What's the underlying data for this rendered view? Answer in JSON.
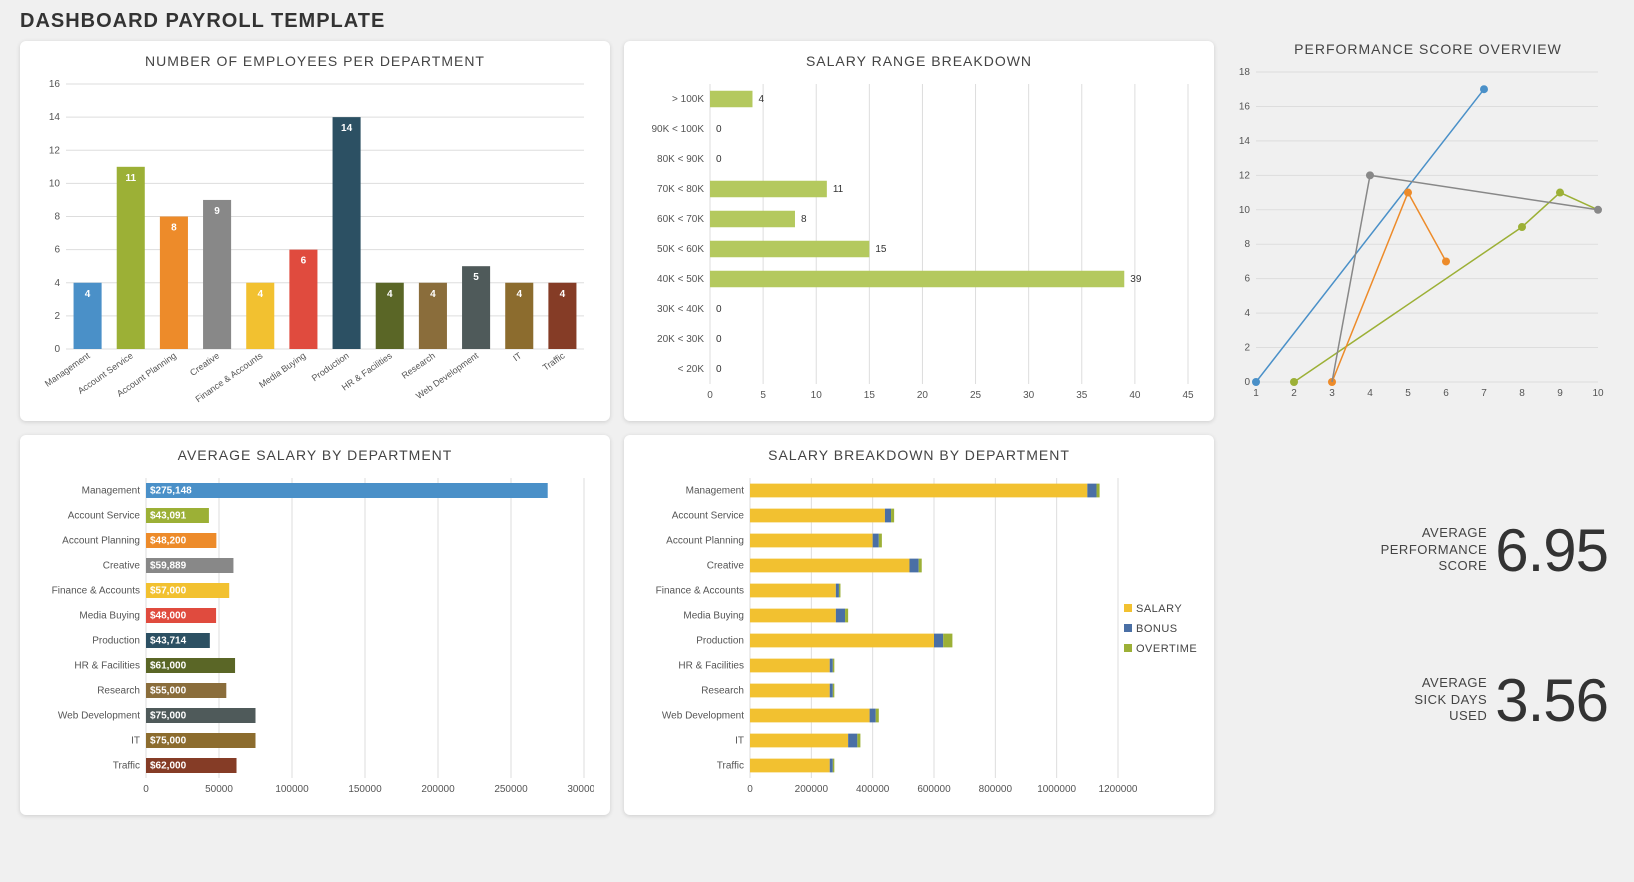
{
  "page_title": "DASHBOARD PAYROLL TEMPLATE",
  "background_color": "#f0f0f0",
  "card_bg": "#ffffff",
  "employees_chart": {
    "title": "NUMBER OF EMPLOYEES PER DEPARTMENT",
    "type": "bar",
    "categories": [
      "Management",
      "Account Service",
      "Account Planning",
      "Creative",
      "Finance & Accounts",
      "Media Buying",
      "Production",
      "HR & Facilities",
      "Research",
      "Web Development",
      "IT",
      "Traffic"
    ],
    "values": [
      4,
      11,
      8,
      9,
      4,
      6,
      14,
      4,
      4,
      5,
      4,
      4
    ],
    "colors": [
      "#4a90c8",
      "#9cb036",
      "#ed8b2a",
      "#888888",
      "#f2c130",
      "#e04b3e",
      "#2c5063",
      "#5a6626",
      "#8a6d3b",
      "#4f5a5a",
      "#8c6c2e",
      "#853c26"
    ],
    "y_max": 16,
    "y_step": 2,
    "grid_color": "#dddddd",
    "label_color": "#555555"
  },
  "salary_range_chart": {
    "title": "SALARY RANGE BREAKDOWN",
    "type": "horizontal_bar",
    "categories": [
      "> 100K",
      "90K < 100K",
      "80K < 90K",
      "70K < 80K",
      "60K < 70K",
      "50K < 60K",
      "40K < 50K",
      "30K < 40K",
      "20K < 30K",
      "< 20K"
    ],
    "values": [
      4,
      0,
      0,
      11,
      8,
      15,
      39,
      0,
      0,
      0
    ],
    "bar_color": "#b4c95e",
    "x_max": 45,
    "x_step": 5,
    "grid_color": "#dddddd"
  },
  "performance_chart": {
    "title": "PERFORMANCE SCORE OVERVIEW",
    "type": "line_multi",
    "x_labels": [
      "1",
      "2",
      "3",
      "4",
      "5",
      "6",
      "7",
      "8",
      "9",
      "10"
    ],
    "y_max": 18,
    "y_step": 2,
    "series": [
      {
        "color": "#4a90c8",
        "points": [
          [
            1,
            0
          ],
          [
            7,
            17
          ]
        ],
        "markers": [
          [
            1,
            0
          ],
          [
            7,
            17
          ]
        ]
      },
      {
        "color": "#9cb036",
        "points": [
          [
            2,
            0
          ],
          [
            8,
            9
          ],
          [
            9,
            11
          ],
          [
            10,
            10
          ]
        ],
        "markers": [
          [
            2,
            0
          ],
          [
            8,
            9
          ],
          [
            9,
            11
          ]
        ]
      },
      {
        "color": "#ed8b2a",
        "points": [
          [
            3,
            0
          ],
          [
            5,
            11
          ],
          [
            6,
            7
          ]
        ],
        "markers": [
          [
            3,
            0
          ],
          [
            5,
            11
          ],
          [
            6,
            7
          ]
        ]
      },
      {
        "color": "#888888",
        "points": [
          [
            3,
            0
          ],
          [
            4,
            12
          ],
          [
            10,
            10
          ]
        ],
        "markers": [
          [
            4,
            12
          ],
          [
            10,
            10
          ]
        ]
      }
    ]
  },
  "avg_salary_chart": {
    "title": "AVERAGE SALARY BY DEPARTMENT",
    "type": "horizontal_bar",
    "categories": [
      "Management",
      "Account Service",
      "Account Planning",
      "Creative",
      "Finance & Accounts",
      "Media Buying",
      "Production",
      "HR & Facilities",
      "Research",
      "Web Development",
      "IT",
      "Traffic"
    ],
    "values": [
      275148,
      43091,
      48200,
      59889,
      57000,
      48000,
      43714,
      61000,
      55000,
      75000,
      75000,
      62000
    ],
    "labels": [
      "$275,148",
      "$43,091",
      "$48,200",
      "$59,889",
      "$57,000",
      "$48,000",
      "$43,714",
      "$61,000",
      "$55,000",
      "$75,000",
      "$75,000",
      "$62,000"
    ],
    "colors": [
      "#4a90c8",
      "#9cb036",
      "#ed8b2a",
      "#888888",
      "#f2c130",
      "#e04b3e",
      "#2c5063",
      "#5a6626",
      "#8a6d3b",
      "#4f5a5a",
      "#8c6c2e",
      "#853c26"
    ],
    "x_max": 300000,
    "x_step": 50000
  },
  "salary_breakdown_chart": {
    "title": "SALARY BREAKDOWN BY DEPARTMENT",
    "type": "stacked_horizontal_bar",
    "categories": [
      "Management",
      "Account Service",
      "Account Planning",
      "Creative",
      "Finance & Accounts",
      "Media Buying",
      "Production",
      "HR & Facilities",
      "Research",
      "Web Development",
      "IT",
      "Traffic"
    ],
    "series": [
      {
        "name": "SALARY",
        "color": "#f2c130",
        "values": [
          1100000,
          440000,
          400000,
          520000,
          280000,
          280000,
          600000,
          260000,
          260000,
          390000,
          320000,
          260000
        ]
      },
      {
        "name": "BONUS",
        "color": "#4a6fa5",
        "values": [
          30000,
          20000,
          20000,
          30000,
          10000,
          30000,
          30000,
          10000,
          10000,
          20000,
          30000,
          10000
        ]
      },
      {
        "name": "OVERTIME",
        "color": "#9cb036",
        "values": [
          10000,
          10000,
          10000,
          10000,
          5000,
          10000,
          30000,
          5000,
          5000,
          10000,
          10000,
          5000
        ]
      }
    ],
    "x_max": 1200000,
    "x_step": 200000
  },
  "kpi_performance": {
    "label_line1": "AVERAGE",
    "label_line2": "PERFORMANCE",
    "label_line3": "SCORE",
    "value": "6.95"
  },
  "kpi_sickdays": {
    "label_line1": "AVERAGE",
    "label_line2": "SICK DAYS",
    "label_line3": "USED",
    "value": "3.56"
  }
}
